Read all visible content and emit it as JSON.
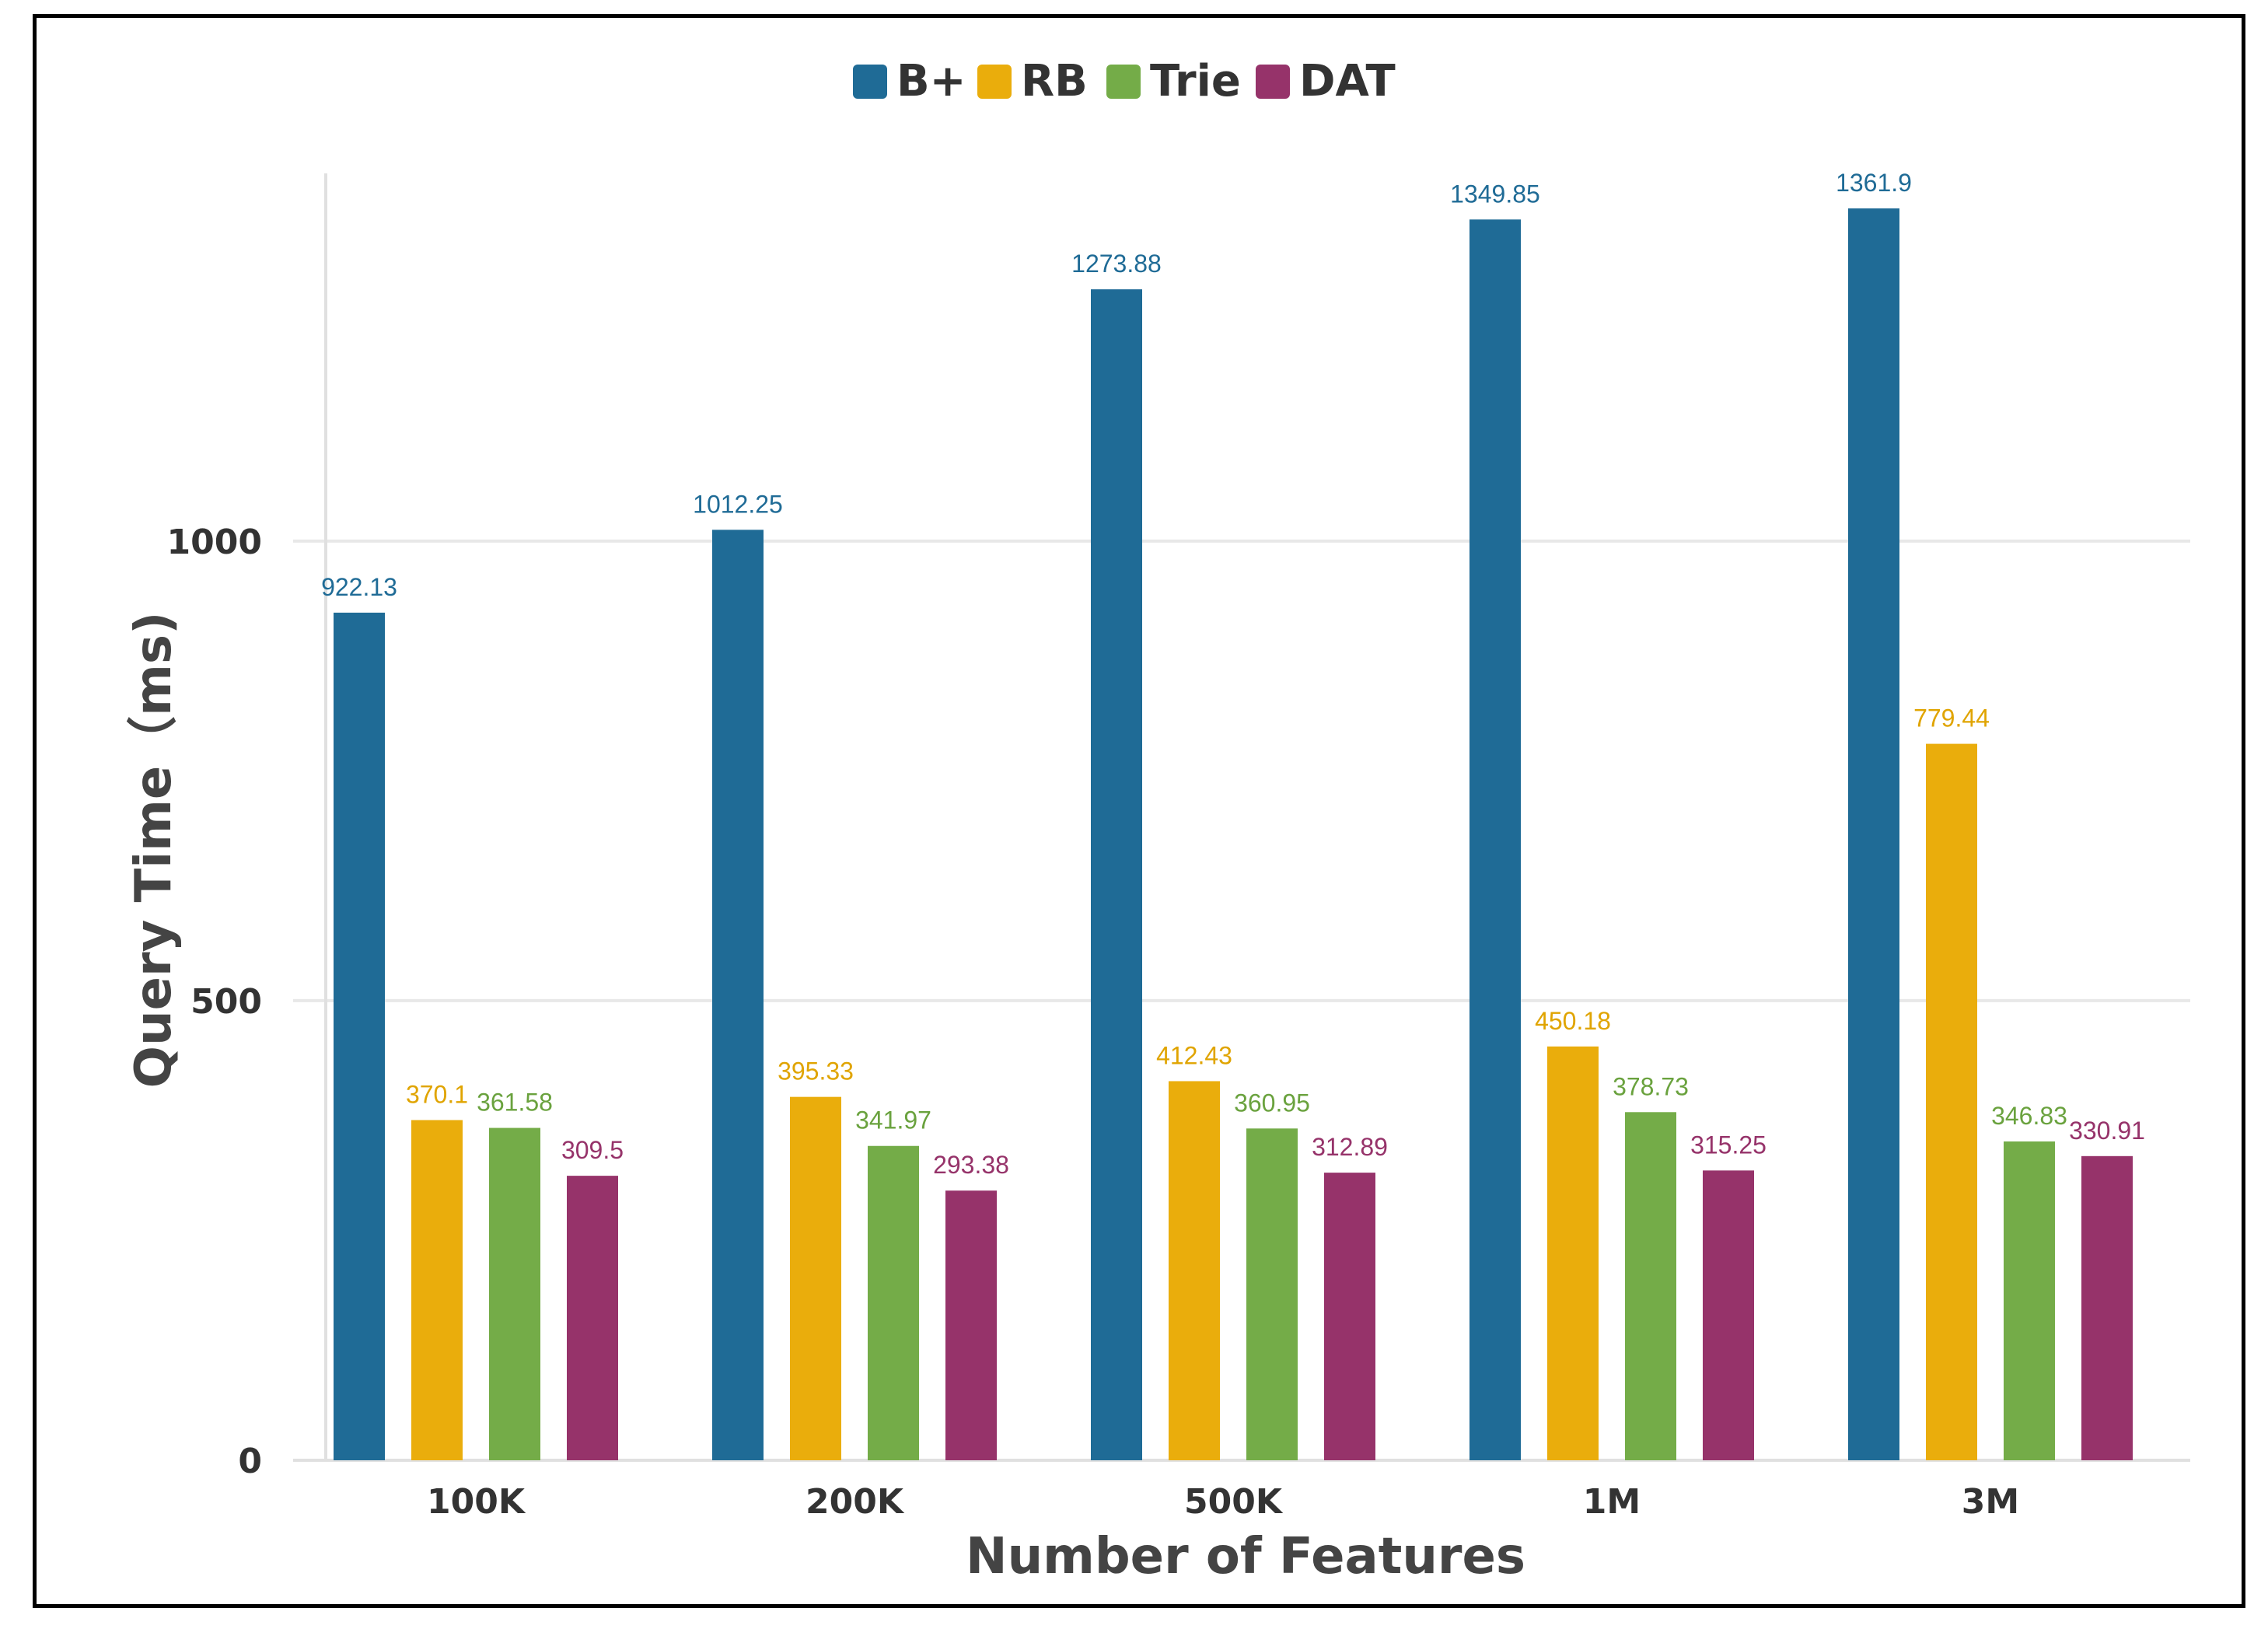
{
  "chart_data": {
    "type": "bar",
    "title": "",
    "xlabel": "Number of Features",
    "ylabel": "Query Time（ms)",
    "ylim": [
      0,
      1400
    ],
    "yticks": [
      0,
      500,
      1000
    ],
    "ytick_labels": [
      "0",
      "500",
      "1000"
    ],
    "grid": true,
    "legend_position": "top-center",
    "categories": [
      "100K",
      "200K",
      "500K",
      "1M",
      "3M"
    ],
    "series": [
      {
        "name": "B+",
        "color": "#1f6b96",
        "label_color": "#1f6b96",
        "values": [
          922.13,
          1012.25,
          1273.88,
          1349.85,
          1361.9
        ],
        "labels": [
          "922.13",
          "1012.25",
          "1273.88",
          "1349.85",
          "1361.9"
        ]
      },
      {
        "name": "RB",
        "color": "#eaad0c",
        "label_color": "#e0a400",
        "values": [
          370.1,
          395.33,
          412.43,
          450.18,
          779.44
        ],
        "labels": [
          "370.1",
          "395.33",
          "412.43",
          "450.18",
          "779.44"
        ]
      },
      {
        "name": "Trie",
        "color": "#74ac48",
        "label_color": "#6aa23e",
        "values": [
          361.58,
          341.97,
          360.95,
          378.73,
          346.83
        ],
        "labels": [
          "361.58",
          "341.97",
          "360.95",
          "378.73",
          "346.83"
        ]
      },
      {
        "name": "DAT",
        "color": "#96336a",
        "label_color": "#96336a",
        "values": [
          309.5,
          293.38,
          312.89,
          315.25,
          330.91
        ],
        "labels": [
          "309.5",
          "293.38",
          "312.89",
          "315.25",
          "330.91"
        ]
      }
    ]
  }
}
